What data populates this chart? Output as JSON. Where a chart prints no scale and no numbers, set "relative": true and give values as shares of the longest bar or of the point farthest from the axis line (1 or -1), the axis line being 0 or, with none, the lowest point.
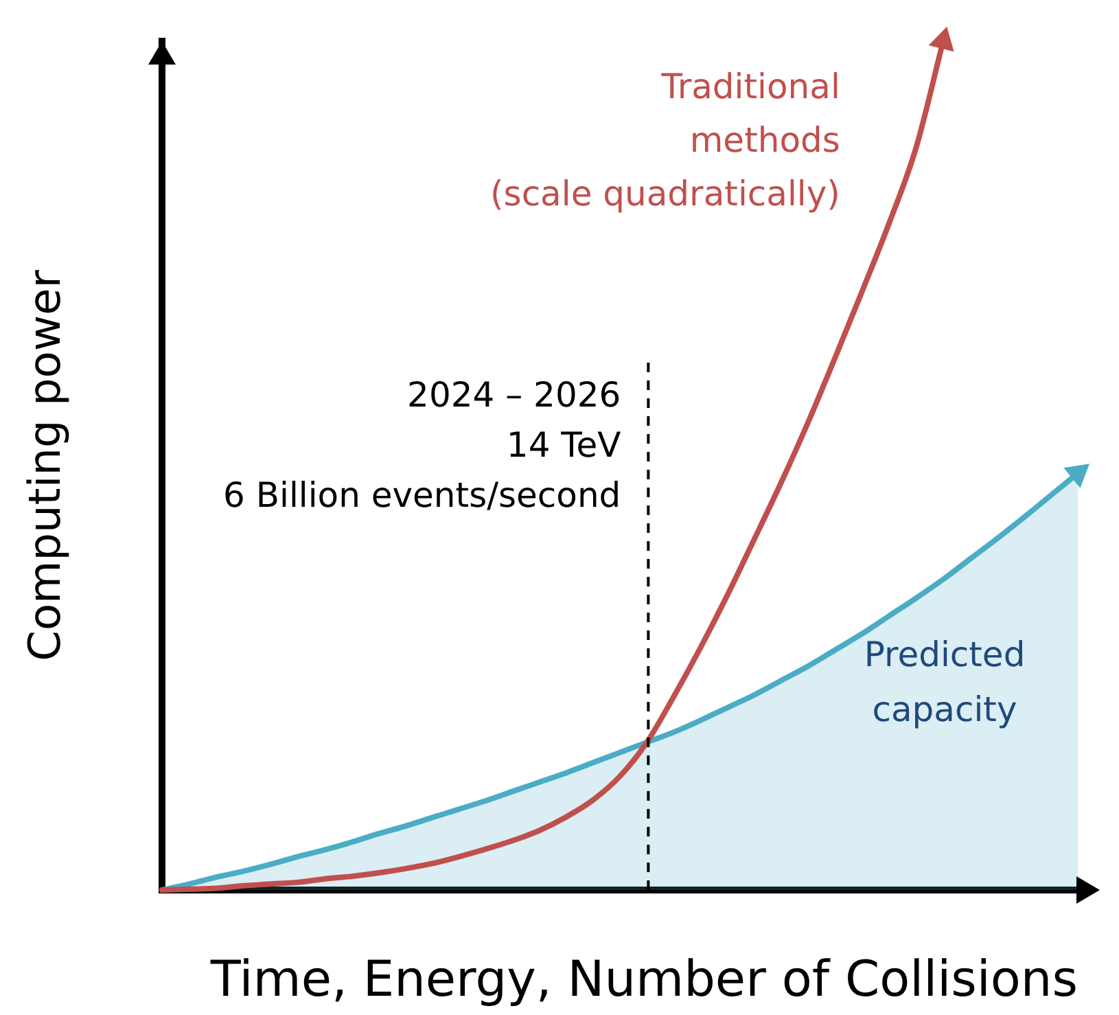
{
  "chart_data": {
    "type": "line",
    "xlabel": "Time, Energy, Number of Collisions",
    "ylabel": "Computing power",
    "relative": true,
    "categories": [
      null,
      null,
      null,
      null,
      null,
      null,
      null,
      null,
      null,
      null,
      null,
      null,
      null,
      null,
      null,
      null,
      null,
      null,
      null,
      null,
      null,
      null,
      null,
      null,
      null,
      null,
      null,
      null,
      null,
      null,
      null,
      null,
      null,
      null,
      null
    ],
    "series": [
      {
        "name": "Traditional\nmethods\n(scale quadratically)",
        "color": "#c0504d",
        "values": [
          0,
          0.001,
          0.002,
          0.005,
          0.007,
          0.009,
          0.013,
          0.016,
          0.02,
          0.025,
          0.031,
          0.039,
          0.048,
          0.058,
          0.07,
          0.086,
          0.106,
          0.134,
          0.174,
          0.228,
          0.286,
          0.348,
          0.414,
          0.481,
          0.552,
          0.628,
          0.706,
          0.786,
          0.875,
          1,
          null,
          null,
          null,
          null,
          null
        ]
      },
      {
        "name": "Predicted\ncapacity",
        "type": "area",
        "color": "#4bacc6",
        "values": [
          0,
          0.007,
          0.015,
          0.022,
          0.03,
          0.039,
          0.047,
          0.056,
          0.066,
          0.075,
          0.085,
          0.095,
          0.105,
          0.116,
          0.127,
          0.138,
          0.15,
          0.162,
          0.174,
          0.186,
          0.2,
          0.215,
          0.23,
          0.247,
          0.264,
          0.283,
          0.302,
          0.323,
          0.344,
          0.366,
          0.39,
          0.414,
          0.439,
          0.465,
          0.491
        ]
      }
    ],
    "annotations": [
      "2024 – 2026\n14 TeV\n6 Billion events/second"
    ],
    "marker": "none",
    "legend": false
  }
}
